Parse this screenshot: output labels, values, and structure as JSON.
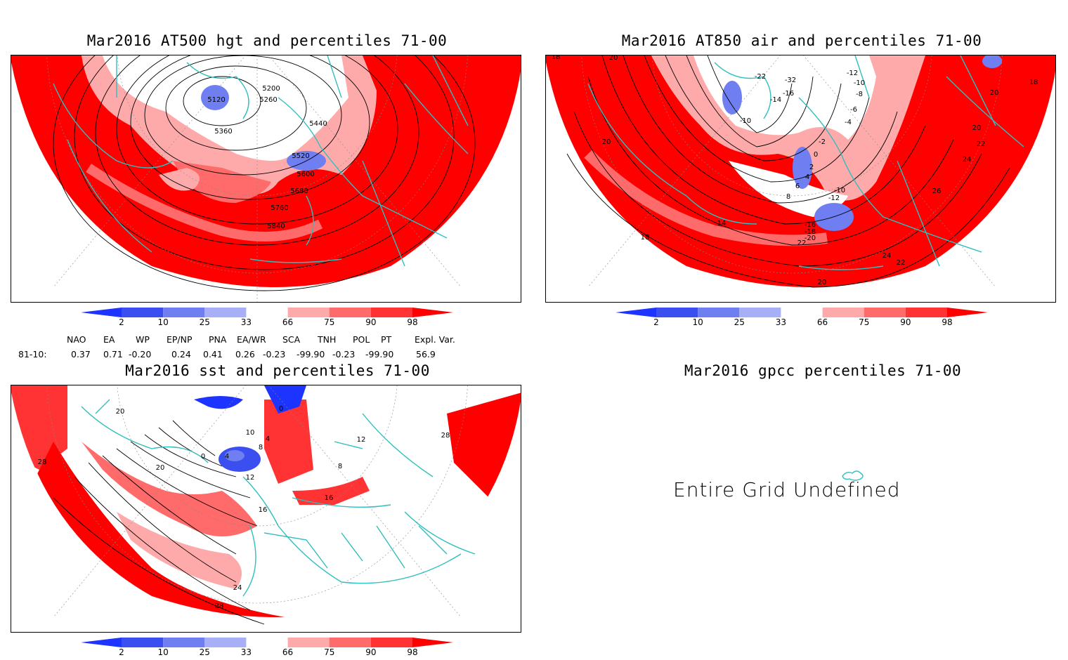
{
  "panels": {
    "hgt500": {
      "title": "Mar2016 AT500 hgt and percentiles 71-00",
      "contour_labels": [
        "5120",
        "5200",
        "5260",
        "5360",
        "5440",
        "5520",
        "5600",
        "5680",
        "5760",
        "5840"
      ]
    },
    "air850": {
      "title": "Mar2016 AT850 air and percentiles 71-00",
      "contour_labels": [
        "18",
        "20",
        "-22",
        "-32",
        "-16",
        "-14",
        "-10",
        "-12",
        "-10",
        "-8",
        "-6",
        "-4",
        "-2",
        "0",
        "2",
        "4",
        "6",
        "8",
        "-10",
        "-12",
        "-16",
        "-18",
        "-20",
        "22",
        "20",
        "18",
        "14",
        "20",
        "20",
        "22",
        "24",
        "26",
        "24",
        "22",
        "20",
        "18"
      ]
    },
    "sst": {
      "title": "Mar2016 sst and percentiles 71-00",
      "contour_labels": [
        "20",
        "28",
        "20",
        "0",
        "4",
        "10",
        "4",
        "8",
        "12",
        "16",
        "24",
        "28",
        "12",
        "28",
        "16",
        "0",
        "8"
      ]
    },
    "gpcc": {
      "title": "Mar2016 gpcc percentiles 71-00",
      "message": "Entire Grid Undefined"
    }
  },
  "colorbar": {
    "ticks": [
      "2",
      "10",
      "25",
      "33",
      "66",
      "75",
      "90",
      "98"
    ],
    "colors": {
      "below2": "#1d33ff",
      "p2_10": "#3b4ff0",
      "p10_25": "#6f7ff2",
      "p25_33": "#a7b0f7",
      "p33_66": "#ffffff",
      "p66_75": "#ffaaaa",
      "p75_90": "#ff6a6a",
      "p90_98": "#ff3333",
      "above98": "#ff0000"
    }
  },
  "indices": {
    "header": [
      "NAO",
      "EA",
      "WP",
      "EP/NP",
      "PNA",
      "EA/WR",
      "SCA",
      "TNH",
      "POL",
      "PT",
      "Expl. Var."
    ],
    "row_label": "81-10:",
    "values": [
      "0.37",
      "0.71",
      "-0.20",
      "0.24",
      "0.41",
      "0.26",
      "-0.23",
      "-99.90",
      "-0.23",
      "-99.90",
      "56.9"
    ]
  },
  "colors": {
    "land_outline": "#2ebfbf",
    "contour": "#000000"
  }
}
